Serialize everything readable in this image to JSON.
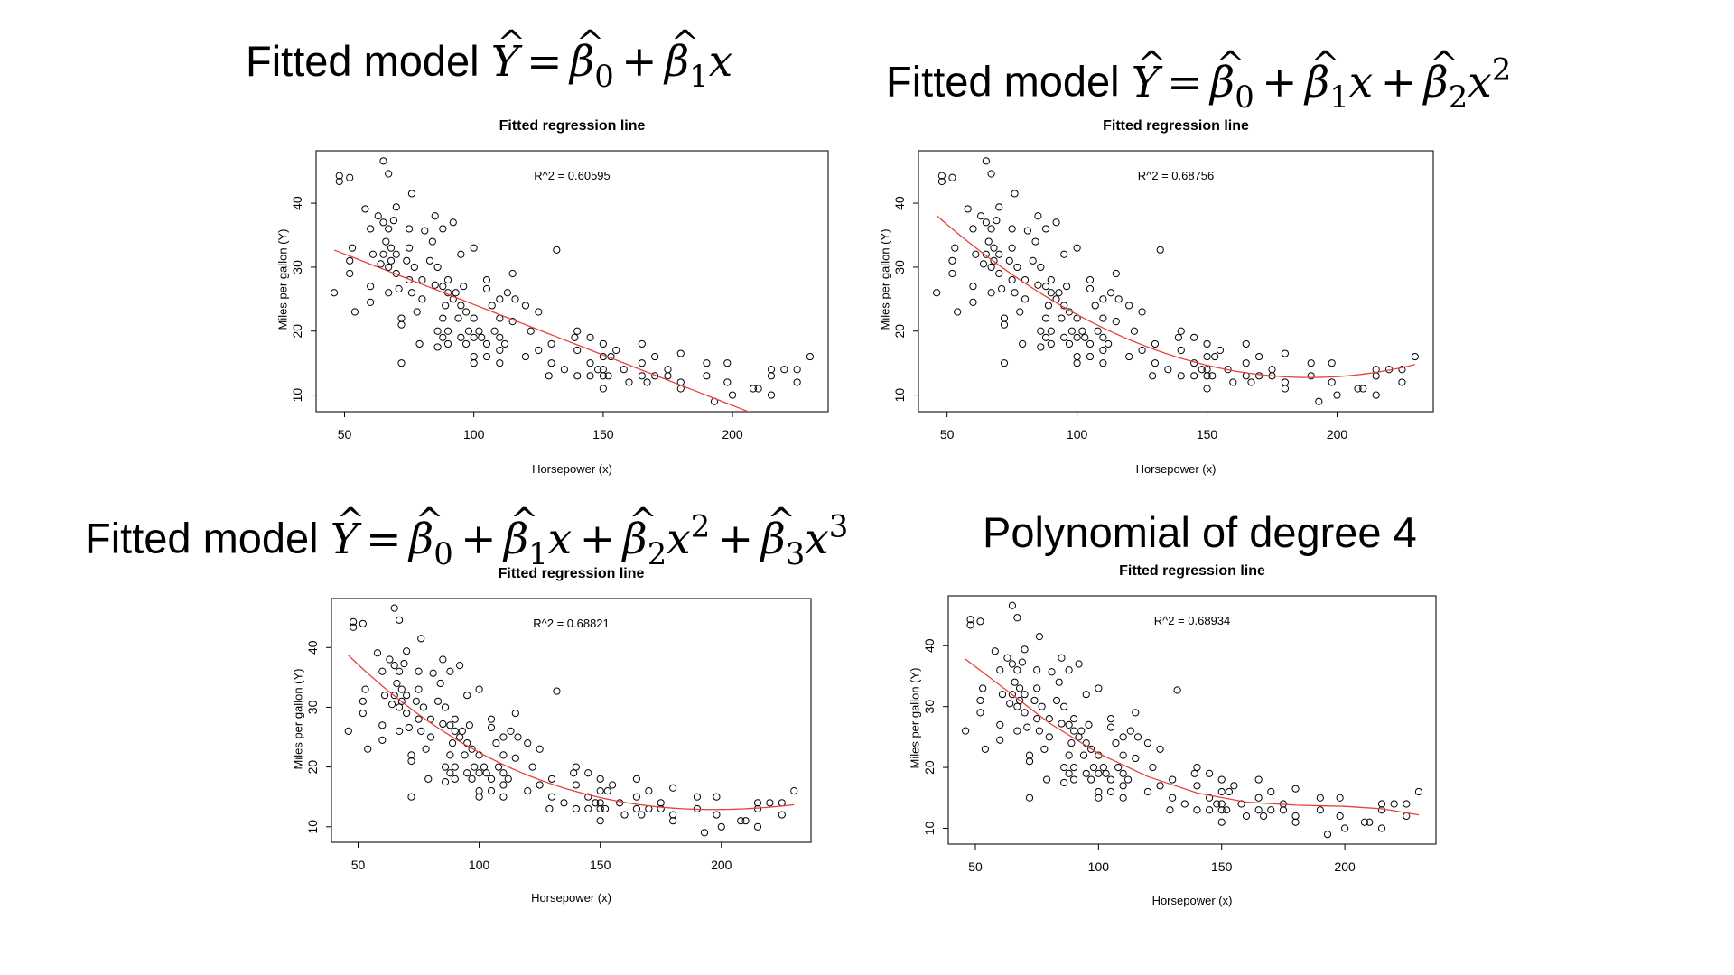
{
  "slide_titles": [
    {
      "prefix": "Fitted model",
      "equation_terms": [
        "Y",
        "=",
        "β",
        "0",
        "+",
        "β",
        "1",
        "x"
      ]
    },
    {
      "prefix": "Fitted model",
      "equation_terms": [
        "Y",
        "=",
        "β",
        "0",
        "+",
        "β",
        "1",
        "x",
        "+",
        "β",
        "2",
        "x",
        "2"
      ]
    },
    {
      "prefix": "Fitted model",
      "equation_terms": [
        "Y",
        "=",
        "β",
        "0",
        "+",
        "β",
        "1",
        "x",
        "+",
        "β",
        "2",
        "x",
        "2",
        "+",
        "β",
        "3",
        "x",
        "3"
      ]
    },
    {
      "prefix": "Polynomial of degree 4"
    }
  ],
  "colors": {
    "points": "#000000",
    "fit_line": "#e8413c",
    "axis": "#000000"
  },
  "chart_data": [
    {
      "type": "scatter",
      "title": "Fitted regression line",
      "annotation": "R^2 = 0.60595",
      "xlabel": "Horsepower (x)",
      "ylabel": "Miles per gallon (Y)",
      "xlim": [
        39,
        237
      ],
      "ylim": [
        7.4,
        48.2
      ],
      "xticks": [
        50,
        100,
        150,
        200
      ],
      "yticks": [
        10,
        20,
        30,
        40
      ],
      "fit": {
        "kind": "polynomial",
        "coefficients": [
          39.936,
          -0.1578
        ]
      }
    },
    {
      "type": "scatter",
      "title": "Fitted regression line",
      "annotation": "R^2 = 0.68756",
      "xlabel": "Horsepower (x)",
      "ylabel": "Miles per gallon (Y)",
      "xlim": [
        39,
        237
      ],
      "ylim": [
        7.4,
        48.2
      ],
      "xticks": [
        50,
        100,
        150,
        200
      ],
      "yticks": [
        10,
        20,
        30,
        40
      ],
      "fit": {
        "kind": "polynomial",
        "coefficients": [
          56.9001,
          -0.46619,
          0.0012305
        ]
      }
    },
    {
      "type": "scatter",
      "title": "Fitted regression line",
      "annotation": "R^2 = 0.68821",
      "xlabel": "Horsepower (x)",
      "ylabel": "Miles per gallon (Y)",
      "xlim": [
        39,
        237
      ],
      "ylim": [
        7.4,
        48.2
      ],
      "xticks": [
        50,
        100,
        150,
        200
      ],
      "yticks": [
        10,
        20,
        30,
        40
      ],
      "fit": {
        "kind": "polynomial",
        "coefficients": [
          60.68,
          -0.5689,
          0.002079,
          -2.147e-06
        ]
      }
    },
    {
      "type": "scatter",
      "title": "Fitted regression line",
      "annotation": "R^2 = 0.68934",
      "xlabel": "Horsepower (x)",
      "ylabel": "Miles per gallon (Y)",
      "xlim": [
        39,
        237
      ],
      "ylim": [
        7.4,
        48.2
      ],
      "xticks": [
        50,
        100,
        150,
        200
      ],
      "yticks": [
        10,
        20,
        30,
        40
      ],
      "fit": {
        "kind": "points",
        "points": [
          [
            46,
            37.8
          ],
          [
            60,
            33.5
          ],
          [
            80,
            27.3
          ],
          [
            100,
            22.3
          ],
          [
            120,
            18.5
          ],
          [
            140,
            15.8
          ],
          [
            160,
            14.3
          ],
          [
            180,
            13.8
          ],
          [
            200,
            13.6
          ],
          [
            215,
            13.2
          ],
          [
            230,
            12.2
          ]
        ]
      }
    }
  ],
  "points": [
    [
      46,
      26
    ],
    [
      48,
      43.4
    ],
    [
      48,
      44.3
    ],
    [
      52,
      44
    ],
    [
      52,
      29
    ],
    [
      52,
      31
    ],
    [
      53,
      33
    ],
    [
      54,
      23
    ],
    [
      58,
      39.1
    ],
    [
      60,
      27
    ],
    [
      60,
      24.5
    ],
    [
      60,
      36
    ],
    [
      61,
      32
    ],
    [
      63,
      38
    ],
    [
      64,
      30.5
    ],
    [
      65,
      32
    ],
    [
      65,
      37
    ],
    [
      65,
      46.6
    ],
    [
      66,
      34
    ],
    [
      67,
      44.6
    ],
    [
      67,
      36
    ],
    [
      67,
      30
    ],
    [
      67,
      26
    ],
    [
      68,
      31
    ],
    [
      68,
      33
    ],
    [
      69,
      37.3
    ],
    [
      70,
      39.4
    ],
    [
      70,
      32
    ],
    [
      70,
      29
    ],
    [
      71,
      26.6
    ],
    [
      72,
      15
    ],
    [
      72,
      22
    ],
    [
      72,
      21
    ],
    [
      74,
      31
    ],
    [
      75,
      28
    ],
    [
      75,
      36
    ],
    [
      75,
      33
    ],
    [
      76,
      41.5
    ],
    [
      76,
      26
    ],
    [
      77,
      30
    ],
    [
      78,
      23
    ],
    [
      79,
      18
    ],
    [
      80,
      28
    ],
    [
      80,
      25
    ],
    [
      81,
      35.7
    ],
    [
      83,
      31
    ],
    [
      84,
      34
    ],
    [
      85,
      27.2
    ],
    [
      85,
      38
    ],
    [
      86,
      30
    ],
    [
      86,
      20
    ],
    [
      86,
      17.5
    ],
    [
      88,
      27
    ],
    [
      88,
      36
    ],
    [
      88,
      22
    ],
    [
      88,
      19
    ],
    [
      89,
      24
    ],
    [
      90,
      20
    ],
    [
      90,
      28
    ],
    [
      90,
      26
    ],
    [
      90,
      18
    ],
    [
      92,
      37
    ],
    [
      92,
      25
    ],
    [
      93,
      26
    ],
    [
      94,
      22
    ],
    [
      95,
      24
    ],
    [
      95,
      19
    ],
    [
      95,
      32
    ],
    [
      96,
      27
    ],
    [
      97,
      18
    ],
    [
      97,
      23
    ],
    [
      98,
      20
    ],
    [
      100,
      33
    ],
    [
      100,
      22
    ],
    [
      100,
      19
    ],
    [
      100,
      16
    ],
    [
      100,
      15
    ],
    [
      102,
      20
    ],
    [
      103,
      19
    ],
    [
      105,
      28
    ],
    [
      105,
      26.6
    ],
    [
      105,
      18
    ],
    [
      105,
      16
    ],
    [
      107,
      24
    ],
    [
      108,
      20
    ],
    [
      110,
      25
    ],
    [
      110,
      22
    ],
    [
      110,
      19
    ],
    [
      110,
      17
    ],
    [
      110,
      15
    ],
    [
      112,
      18
    ],
    [
      113,
      26
    ],
    [
      115,
      29
    ],
    [
      115,
      21.5
    ],
    [
      116,
      25
    ],
    [
      120,
      24
    ],
    [
      120,
      16
    ],
    [
      122,
      20
    ],
    [
      125,
      23
    ],
    [
      125,
      17
    ],
    [
      129,
      13
    ],
    [
      130,
      15
    ],
    [
      130,
      18
    ],
    [
      132,
      32.7
    ],
    [
      135,
      14
    ],
    [
      139,
      19
    ],
    [
      140,
      20
    ],
    [
      140,
      17
    ],
    [
      140,
      13
    ],
    [
      145,
      19
    ],
    [
      145,
      15
    ],
    [
      145,
      13
    ],
    [
      148,
      14
    ],
    [
      150,
      18
    ],
    [
      150,
      16
    ],
    [
      150,
      14
    ],
    [
      150,
      13
    ],
    [
      150,
      11
    ],
    [
      152,
      13
    ],
    [
      153,
      16
    ],
    [
      155,
      17
    ],
    [
      158,
      14
    ],
    [
      160,
      12
    ],
    [
      165,
      18
    ],
    [
      165,
      15
    ],
    [
      165,
      13
    ],
    [
      167,
      12
    ],
    [
      170,
      16
    ],
    [
      170,
      13
    ],
    [
      175,
      13
    ],
    [
      175,
      14
    ],
    [
      180,
      16.5
    ],
    [
      180,
      12
    ],
    [
      180,
      11
    ],
    [
      190,
      15
    ],
    [
      190,
      13
    ],
    [
      193,
      9
    ],
    [
      198,
      15
    ],
    [
      198,
      12
    ],
    [
      200,
      10
    ],
    [
      208,
      11
    ],
    [
      210,
      11
    ],
    [
      215,
      14
    ],
    [
      215,
      13
    ],
    [
      215,
      10
    ],
    [
      220,
      14
    ],
    [
      225,
      14
    ],
    [
      225,
      12
    ],
    [
      230,
      16
    ]
  ]
}
